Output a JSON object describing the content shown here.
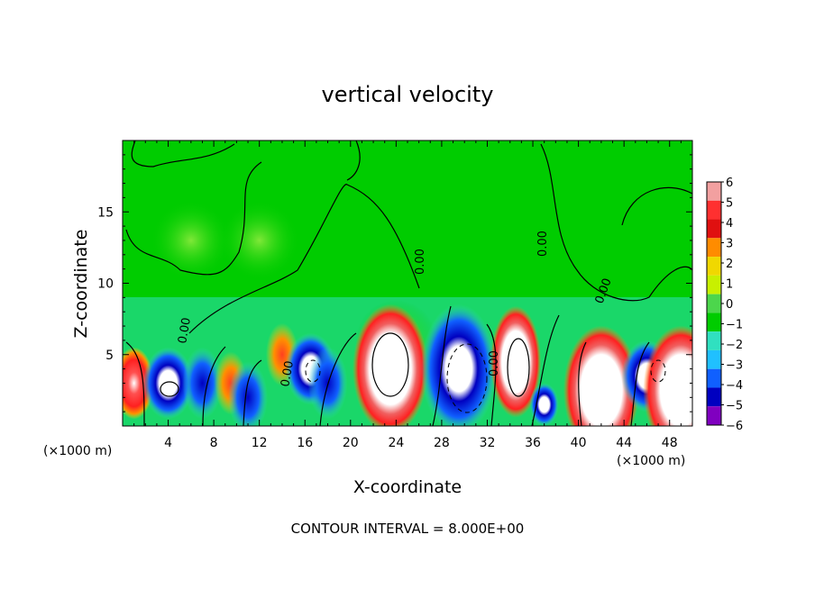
{
  "chart_data": {
    "type": "heatmap",
    "title": "vertical velocity",
    "xlabel": "X-coordinate",
    "ylabel": "Z-coordinate",
    "x_unit_left": "(×1000 m)",
    "x_unit_right": "(×1000 m)",
    "footer": "CONTOUR INTERVAL = 8.000E+00",
    "xlim": [
      0,
      50
    ],
    "ylim": [
      0,
      20
    ],
    "x_ticks": [
      4,
      8,
      12,
      16,
      20,
      24,
      28,
      32,
      36,
      40,
      44,
      48
    ],
    "y_ticks": [
      5,
      10,
      15
    ],
    "contour_labels": [
      "0.00",
      "0.00",
      "0.00",
      "0.00",
      "0.00",
      "0.00",
      "0.00"
    ],
    "colorbar": {
      "labels": [
        "6",
        "5",
        "4",
        "3",
        "2",
        "1",
        "0",
        "−1",
        "−2",
        "−3",
        "−4",
        "−5",
        "−6"
      ],
      "colors": [
        "#f2a0a0",
        "#ff3030",
        "#e01010",
        "#ff8c00",
        "#f0d800",
        "#c8f000",
        "#4cd64c",
        "#00cc00",
        "#30e0c0",
        "#20c0ff",
        "#1060ff",
        "#0000c0",
        "#8000c0"
      ]
    },
    "cells": [
      {
        "x": 6,
        "z": 13,
        "v": 1
      },
      {
        "x": 12,
        "z": 13,
        "v": 1
      },
      {
        "x": 24,
        "z": 6,
        "v": 0.5
      },
      {
        "x": 1,
        "z": 3,
        "v": 5
      },
      {
        "x": 4,
        "z": 3,
        "v": -5
      },
      {
        "x": 7,
        "z": 3,
        "v": -3
      },
      {
        "x": 9.5,
        "z": 3,
        "v": 4
      },
      {
        "x": 11,
        "z": 2,
        "v": -4
      },
      {
        "x": 14,
        "z": 5,
        "v": 4
      },
      {
        "x": 16.5,
        "z": 4,
        "v": -5
      },
      {
        "x": 18,
        "z": 3,
        "v": -3
      },
      {
        "x": 23.5,
        "z": 4,
        "v": 6
      },
      {
        "x": 29.5,
        "z": 4,
        "v": -6
      },
      {
        "x": 34.5,
        "z": 4.5,
        "v": 6
      },
      {
        "x": 37,
        "z": 1.5,
        "v": -5
      },
      {
        "x": 42,
        "z": 2.5,
        "v": 6
      },
      {
        "x": 46,
        "z": 3.5,
        "v": -5
      },
      {
        "x": 49,
        "z": 2.5,
        "v": 6
      }
    ]
  }
}
